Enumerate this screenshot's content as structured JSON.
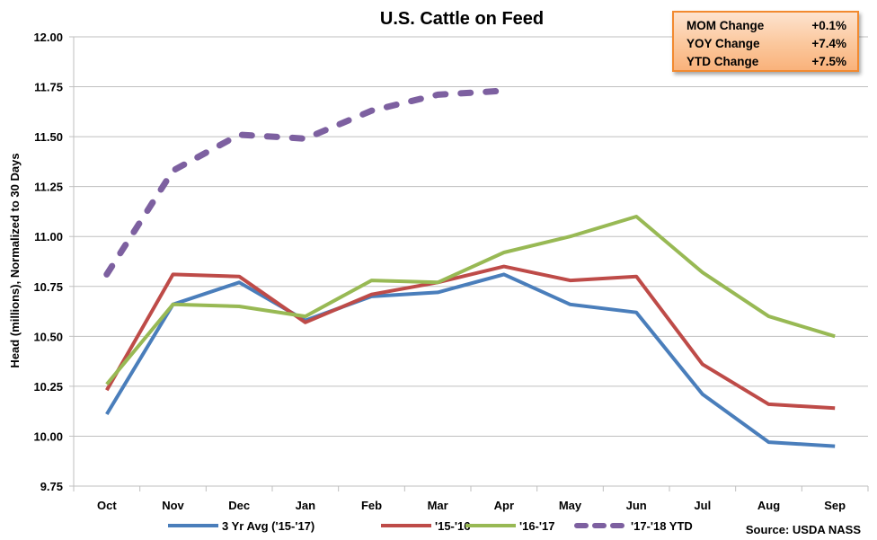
{
  "chart_data": {
    "type": "line",
    "title": "U.S. Cattle on Feed",
    "xlabel": "",
    "ylabel": "Head (millions), Normalized to 30 Days",
    "ylim": [
      9.75,
      12.0
    ],
    "yticks": [
      "12.00",
      "11.75",
      "11.50",
      "11.25",
      "11.00",
      "10.75",
      "10.50",
      "10.25",
      "10.00",
      "9.75"
    ],
    "ytick_values": [
      12.0,
      11.75,
      11.5,
      11.25,
      11.0,
      10.75,
      10.5,
      10.25,
      10.0,
      9.75
    ],
    "grid": true,
    "legend_position": "bottom",
    "categories": [
      "Oct",
      "Nov",
      "Dec",
      "Jan",
      "Feb",
      "Mar",
      "Apr",
      "May",
      "Jun",
      "Jul",
      "Aug",
      "Sep"
    ],
    "series": [
      {
        "name": "3 Yr Avg ('15-'17)",
        "color": "#4a7ebb",
        "dashed": false,
        "values": [
          10.11,
          10.66,
          10.77,
          10.58,
          10.7,
          10.72,
          10.81,
          10.66,
          10.62,
          10.21,
          9.97,
          9.95
        ]
      },
      {
        "name": "'15-'16",
        "color": "#be4b48",
        "dashed": false,
        "values": [
          10.23,
          10.81,
          10.8,
          10.57,
          10.71,
          10.77,
          10.85,
          10.78,
          10.8,
          10.36,
          10.16,
          10.14
        ]
      },
      {
        "name": "'16-'17",
        "color": "#98b954",
        "dashed": false,
        "values": [
          10.26,
          10.66,
          10.65,
          10.6,
          10.78,
          10.77,
          10.92,
          11.0,
          11.1,
          10.82,
          10.6,
          10.5
        ]
      },
      {
        "name": "'17-'18 YTD",
        "color": "#7d60a0",
        "dashed": true,
        "values": [
          10.81,
          11.33,
          11.51,
          11.49,
          11.63,
          11.71,
          11.73,
          null,
          null,
          null,
          null,
          null
        ]
      }
    ],
    "annotations": {
      "source": "Source: USDA NASS"
    }
  },
  "stats": [
    {
      "label": "MOM Change",
      "value": "+0.1%"
    },
    {
      "label": "YOY Change",
      "value": "+7.4%"
    },
    {
      "label": "YTD Change",
      "value": "+7.5%"
    }
  ]
}
